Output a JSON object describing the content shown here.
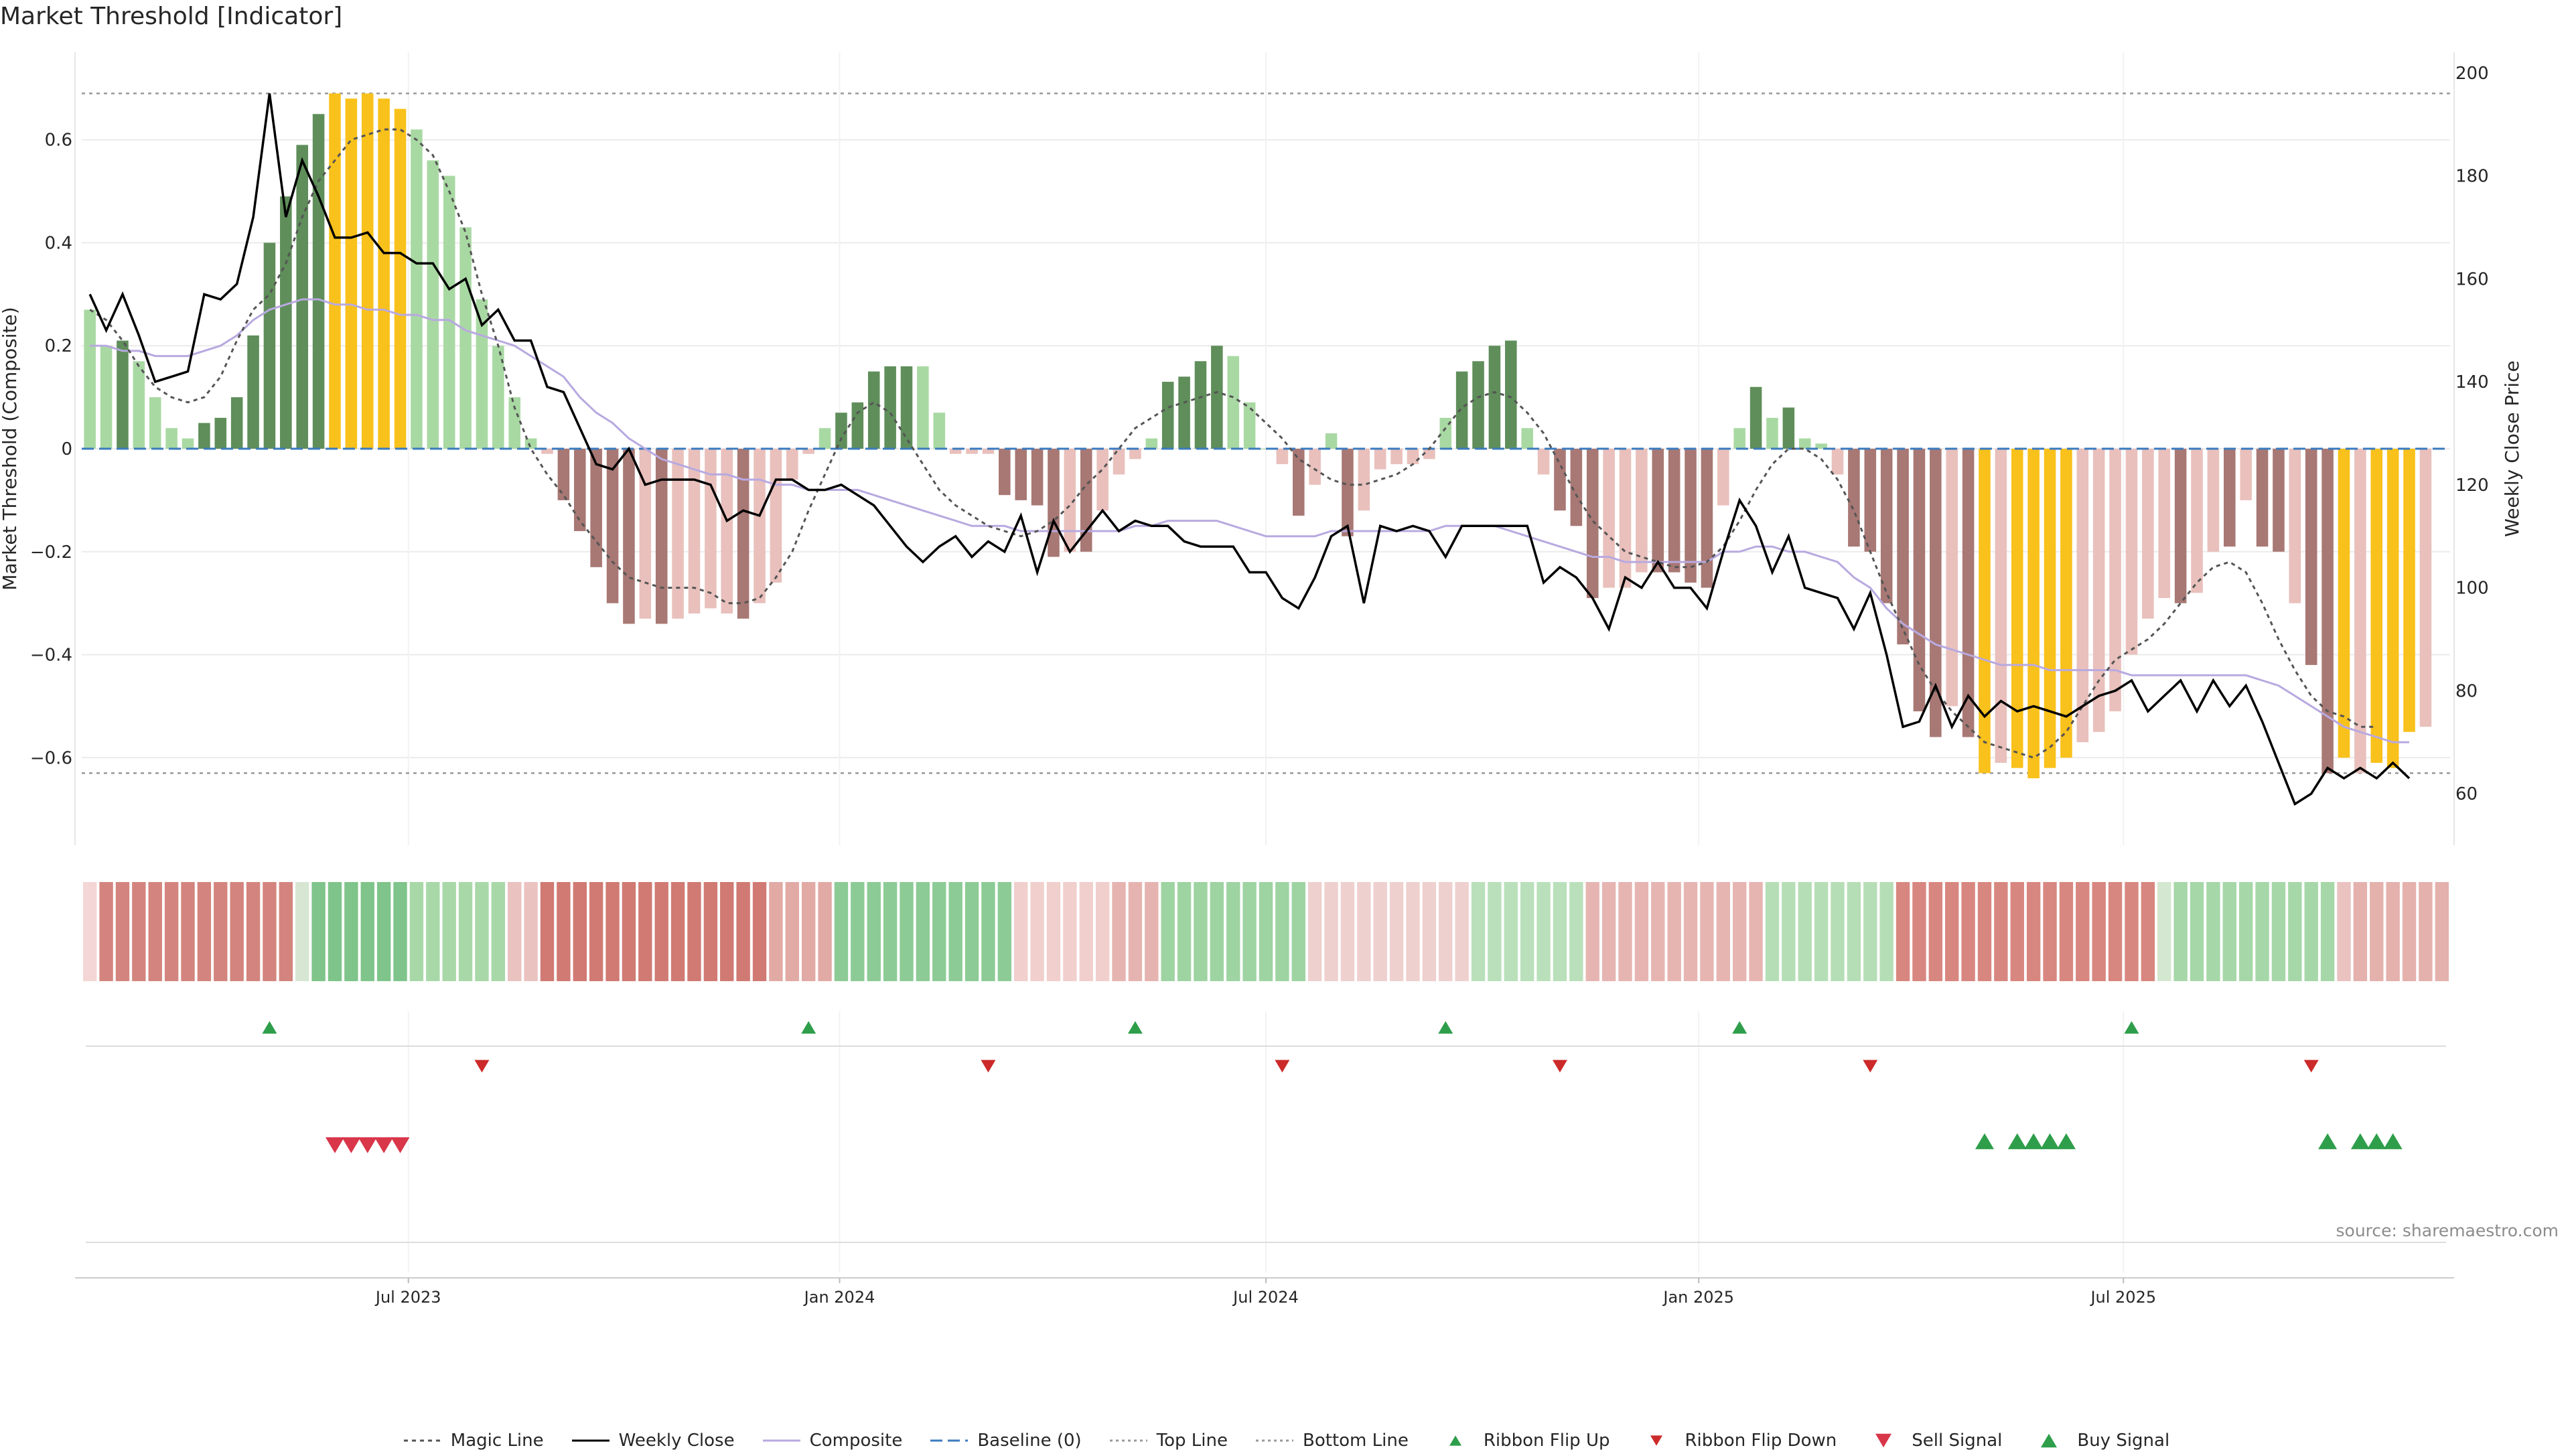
{
  "title": "Market Threshold [Indicator]",
  "source": "source: sharemaestro.com",
  "legend": [
    {
      "label": "Magic Line",
      "kind": "line",
      "color": "#555555",
      "dash": "6,6"
    },
    {
      "label": "Weekly Close",
      "kind": "line",
      "color": "#000000",
      "dash": ""
    },
    {
      "label": "Composite",
      "kind": "line",
      "color": "#b8a9e0",
      "dash": ""
    },
    {
      "label": "Baseline (0)",
      "kind": "line",
      "color": "#3b7bbf",
      "dash": "18,8"
    },
    {
      "label": "Top Line",
      "kind": "line",
      "color": "#999999",
      "dash": "4,5"
    },
    {
      "label": "Bottom Line",
      "kind": "line",
      "color": "#999999",
      "dash": "4,5"
    },
    {
      "label": "Ribbon Flip Up",
      "kind": "tri-up",
      "color": "#2e9e4a"
    },
    {
      "label": "Ribbon Flip Down",
      "kind": "tri-down",
      "color": "#cc2a2a"
    },
    {
      "label": "Sell Signal",
      "kind": "tri-down-big",
      "color": "#d9364a"
    },
    {
      "label": "Buy Signal",
      "kind": "tri-up-big",
      "color": "#2e9e4a"
    }
  ],
  "chart_data": {
    "type": "bar",
    "title": "Market Threshold [Indicator]",
    "ylabel": "Market Threshold (Composite)",
    "y2label": "Weekly Close Price",
    "ylim": [
      -0.77,
      0.77
    ],
    "y2lim": [
      50,
      204
    ],
    "yticks": [
      -0.6,
      -0.4,
      -0.2,
      0,
      0.2,
      0.4,
      0.6
    ],
    "y2ticks": [
      60,
      80,
      100,
      120,
      140,
      160,
      180,
      200
    ],
    "top_line": 0.69,
    "bottom_line": -0.63,
    "weeks": 145,
    "x_ticks": [
      {
        "label": "Jul 2023",
        "week": 20
      },
      {
        "label": "Jan 2024",
        "week": 46.4
      },
      {
        "label": "Jul 2024",
        "week": 72.5
      },
      {
        "label": "Jan 2025",
        "week": 99
      },
      {
        "label": "Jul 2025",
        "week": 125
      }
    ],
    "composite_bars": [
      0.27,
      0.2,
      0.21,
      0.17,
      0.1,
      0.04,
      0.02,
      0.05,
      0.06,
      0.1,
      0.22,
      0.4,
      0.49,
      0.59,
      0.65,
      0.69,
      0.68,
      0.69,
      0.68,
      0.66,
      0.62,
      0.56,
      0.53,
      0.43,
      0.29,
      0.2,
      0.1,
      0.02,
      -0.01,
      -0.1,
      -0.16,
      -0.23,
      -0.3,
      -0.34,
      -0.33,
      -0.34,
      -0.33,
      -0.32,
      -0.31,
      -0.32,
      -0.33,
      -0.3,
      -0.26,
      -0.06,
      -0.01,
      0.04,
      0.07,
      0.09,
      0.15,
      0.16,
      0.16,
      0.16,
      0.07,
      -0.01,
      -0.01,
      -0.01,
      -0.09,
      -0.1,
      -0.11,
      -0.21,
      -0.2,
      -0.2,
      -0.12,
      -0.05,
      -0.02,
      0.02,
      0.13,
      0.14,
      0.17,
      0.2,
      0.18,
      0.09,
      0.0,
      -0.03,
      -0.13,
      -0.07,
      0.03,
      -0.17,
      -0.12,
      -0.04,
      -0.03,
      -0.03,
      -0.02,
      0.06,
      0.15,
      0.17,
      0.2,
      0.21,
      0.04,
      -0.05,
      -0.12,
      -0.15,
      -0.29,
      -0.27,
      -0.27,
      -0.24,
      -0.24,
      -0.24,
      -0.26,
      -0.27,
      -0.11,
      0.04,
      0.12,
      0.06,
      0.08,
      0.02,
      0.01,
      -0.05,
      -0.19,
      -0.2,
      -0.3,
      -0.38,
      -0.51,
      -0.56,
      -0.5,
      -0.56,
      -0.63,
      -0.61,
      -0.62,
      -0.64,
      -0.62,
      -0.6,
      -0.57,
      -0.55,
      -0.51,
      -0.4,
      -0.33,
      -0.29,
      -0.3,
      -0.28,
      -0.2,
      -0.19,
      -0.1,
      -0.19,
      -0.2,
      -0.3,
      -0.42,
      -0.63,
      -0.6,
      -0.63,
      -0.61,
      -0.62,
      -0.55,
      -0.54
    ],
    "bar_colors": [
      "#a9d9a3",
      "#a9d9a3",
      "#5f8e5a",
      "#a9d9a3",
      "#a9d9a3",
      "#a9d9a3",
      "#a9d9a3",
      "#5f8e5a",
      "#5f8e5a",
      "#5f8e5a",
      "#5f8e5a",
      "#5f8e5a",
      "#5f8e5a",
      "#5f8e5a",
      "#5f8e5a",
      "#f9c11b",
      "#f9c11b",
      "#f9c11b",
      "#f9c11b",
      "#f9c11b",
      "#a9d9a3",
      "#a9d9a3",
      "#a9d9a3",
      "#a9d9a3",
      "#a9d9a3",
      "#a9d9a3",
      "#a9d9a3",
      "#a9d9a3",
      "#e9c0bc",
      "#a87874",
      "#a87874",
      "#a87874",
      "#a87874",
      "#a87874",
      "#e9c0bc",
      "#a87874",
      "#e9c0bc",
      "#e9c0bc",
      "#e9c0bc",
      "#e9c0bc",
      "#a87874",
      "#e9c0bc",
      "#e9c0bc",
      "#e9c0bc",
      "#e9c0bc",
      "#a9d9a3",
      "#5f8e5a",
      "#5f8e5a",
      "#5f8e5a",
      "#5f8e5a",
      "#5f8e5a",
      "#a9d9a3",
      "#a9d9a3",
      "#e9c0bc",
      "#e9c0bc",
      "#e9c0bc",
      "#a87874",
      "#a87874",
      "#a87874",
      "#a87874",
      "#e9c0bc",
      "#a87874",
      "#e9c0bc",
      "#e9c0bc",
      "#e9c0bc",
      "#a9d9a3",
      "#5f8e5a",
      "#5f8e5a",
      "#5f8e5a",
      "#5f8e5a",
      "#a9d9a3",
      "#a9d9a3",
      "#a9d9a3",
      "#e9c0bc",
      "#a87874",
      "#e9c0bc",
      "#a9d9a3",
      "#a87874",
      "#e9c0bc",
      "#e9c0bc",
      "#e9c0bc",
      "#e9c0bc",
      "#e9c0bc",
      "#a9d9a3",
      "#5f8e5a",
      "#5f8e5a",
      "#5f8e5a",
      "#5f8e5a",
      "#a9d9a3",
      "#e9c0bc",
      "#a87874",
      "#a87874",
      "#a87874",
      "#e9c0bc",
      "#e9c0bc",
      "#e9c0bc",
      "#a87874",
      "#a87874",
      "#a87874",
      "#a87874",
      "#e9c0bc",
      "#a9d9a3",
      "#5f8e5a",
      "#a9d9a3",
      "#5f8e5a",
      "#a9d9a3",
      "#a9d9a3",
      "#e9c0bc",
      "#a87874",
      "#a87874",
      "#a87874",
      "#a87874",
      "#a87874",
      "#a87874",
      "#e9c0bc",
      "#a87874",
      "#f9c11b",
      "#e9c0bc",
      "#f9c11b",
      "#f9c11b",
      "#f9c11b",
      "#f9c11b",
      "#e9c0bc",
      "#e9c0bc",
      "#e9c0bc",
      "#e9c0bc",
      "#e9c0bc",
      "#e9c0bc",
      "#a87874",
      "#e9c0bc",
      "#e9c0bc",
      "#a87874",
      "#e9c0bc",
      "#a87874",
      "#a87874",
      "#e9c0bc",
      "#a87874",
      "#a87874",
      "#f9c11b",
      "#e9c0bc",
      "#f9c11b",
      "#f9c11b",
      "#f9c11b",
      "#e9c0bc",
      "#e9c0bc"
    ],
    "weekly_close": [
      157,
      150,
      157,
      149,
      140,
      141,
      142,
      157,
      156,
      159,
      172,
      196,
      172,
      183,
      176,
      168,
      168,
      169,
      165,
      165,
      163,
      163,
      158,
      160,
      151,
      154,
      148,
      148,
      139,
      138,
      131,
      124,
      123,
      127,
      120,
      121,
      121,
      121,
      120,
      113,
      115,
      114,
      121,
      121,
      119,
      119,
      120,
      118,
      116,
      112,
      108,
      105,
      108,
      110,
      106,
      109,
      107,
      114,
      103,
      113,
      107,
      111,
      115,
      111,
      113,
      112,
      112,
      109,
      108,
      108,
      108,
      103,
      103,
      98,
      96,
      102,
      110,
      112,
      97,
      112,
      111,
      112,
      111,
      106,
      112,
      112,
      112,
      112,
      112,
      101,
      104,
      102,
      98,
      92,
      102,
      100,
      105,
      100,
      100,
      96,
      107,
      117,
      112,
      103,
      110,
      100,
      99,
      98,
      92,
      99,
      87,
      73,
      74,
      81,
      73,
      79,
      75,
      78,
      76,
      77,
      76,
      75,
      77,
      79,
      80,
      82,
      76,
      79,
      82,
      76,
      82,
      77,
      81,
      74,
      66,
      58,
      60,
      65,
      63,
      65,
      63,
      66,
      63
    ],
    "composite_line": [
      0.2,
      0.2,
      0.19,
      0.19,
      0.18,
      0.18,
      0.18,
      0.19,
      0.2,
      0.22,
      0.25,
      0.27,
      0.28,
      0.29,
      0.29,
      0.28,
      0.28,
      0.27,
      0.27,
      0.26,
      0.26,
      0.25,
      0.25,
      0.23,
      0.22,
      0.21,
      0.2,
      0.18,
      0.16,
      0.14,
      0.1,
      0.07,
      0.05,
      0.02,
      0.0,
      -0.02,
      -0.03,
      -0.04,
      -0.05,
      -0.05,
      -0.06,
      -0.06,
      -0.07,
      -0.07,
      -0.08,
      -0.08,
      -0.08,
      -0.08,
      -0.09,
      -0.1,
      -0.11,
      -0.12,
      -0.13,
      -0.14,
      -0.15,
      -0.15,
      -0.15,
      -0.16,
      -0.16,
      -0.16,
      -0.16,
      -0.16,
      -0.16,
      -0.16,
      -0.15,
      -0.15,
      -0.14,
      -0.14,
      -0.14,
      -0.14,
      -0.15,
      -0.16,
      -0.17,
      -0.17,
      -0.17,
      -0.17,
      -0.16,
      -0.16,
      -0.16,
      -0.16,
      -0.16,
      -0.16,
      -0.16,
      -0.15,
      -0.15,
      -0.15,
      -0.15,
      -0.16,
      -0.17,
      -0.18,
      -0.19,
      -0.2,
      -0.21,
      -0.21,
      -0.22,
      -0.22,
      -0.22,
      -0.22,
      -0.22,
      -0.22,
      -0.2,
      -0.2,
      -0.19,
      -0.19,
      -0.2,
      -0.2,
      -0.21,
      -0.22,
      -0.25,
      -0.27,
      -0.31,
      -0.34,
      -0.36,
      -0.38,
      -0.39,
      -0.4,
      -0.41,
      -0.42,
      -0.42,
      -0.42,
      -0.43,
      -0.43,
      -0.43,
      -0.43,
      -0.43,
      -0.44,
      -0.44,
      -0.44,
      -0.44,
      -0.44,
      -0.44,
      -0.44,
      -0.44,
      -0.45,
      -0.46,
      -0.48,
      -0.5,
      -0.52,
      -0.54,
      -0.55,
      -0.56,
      -0.57,
      -0.57
    ],
    "magic_line": [
      0.27,
      0.25,
      0.21,
      0.16,
      0.12,
      0.1,
      0.09,
      0.1,
      0.14,
      0.21,
      0.27,
      0.3,
      0.36,
      0.45,
      0.52,
      0.56,
      0.6,
      0.61,
      0.62,
      0.62,
      0.6,
      0.57,
      0.5,
      0.42,
      0.3,
      0.2,
      0.08,
      0.0,
      -0.05,
      -0.09,
      -0.14,
      -0.18,
      -0.22,
      -0.25,
      -0.26,
      -0.27,
      -0.27,
      -0.27,
      -0.28,
      -0.3,
      -0.3,
      -0.29,
      -0.25,
      -0.2,
      -0.12,
      -0.05,
      0.02,
      0.07,
      0.09,
      0.07,
      0.02,
      -0.03,
      -0.08,
      -0.11,
      -0.13,
      -0.15,
      -0.16,
      -0.17,
      -0.16,
      -0.14,
      -0.11,
      -0.07,
      -0.04,
      0.0,
      0.04,
      0.06,
      0.08,
      0.09,
      0.1,
      0.11,
      0.1,
      0.08,
      0.05,
      0.02,
      -0.02,
      -0.04,
      -0.06,
      -0.07,
      -0.07,
      -0.06,
      -0.05,
      -0.03,
      0.0,
      0.04,
      0.08,
      0.1,
      0.11,
      0.1,
      0.07,
      0.03,
      -0.03,
      -0.09,
      -0.14,
      -0.17,
      -0.2,
      -0.21,
      -0.22,
      -0.23,
      -0.23,
      -0.22,
      -0.19,
      -0.14,
      -0.08,
      -0.03,
      0.0,
      0.0,
      -0.02,
      -0.06,
      -0.12,
      -0.2,
      -0.28,
      -0.35,
      -0.42,
      -0.47,
      -0.51,
      -0.54,
      -0.57,
      -0.58,
      -0.59,
      -0.6,
      -0.58,
      -0.55,
      -0.5,
      -0.45,
      -0.41,
      -0.39,
      -0.37,
      -0.34,
      -0.3,
      -0.26,
      -0.23,
      -0.22,
      -0.24,
      -0.3,
      -0.37,
      -0.43,
      -0.48,
      -0.51,
      -0.52,
      -0.54,
      -0.54
    ],
    "ribbon": [
      [
        "#f3d6d5",
        1
      ],
      [
        "#d4847e",
        12
      ],
      [
        "#d6e6d2",
        1
      ],
      [
        "#7fc48a",
        6
      ],
      [
        "#a8d8a8",
        6
      ],
      [
        "#eac2c0",
        2
      ],
      [
        "#d07a73",
        14
      ],
      [
        "#e2aaa5",
        4
      ],
      [
        "#8ccb95",
        11
      ],
      [
        "#f0cfcd",
        6
      ],
      [
        "#e6b4b0",
        3
      ],
      [
        "#9ed3a2",
        9
      ],
      [
        "#eed0ce",
        10
      ],
      [
        "#b9e0ba",
        7
      ],
      [
        "#e6b5b2",
        11
      ],
      [
        "#b6deb6",
        8
      ],
      [
        "#d88780",
        16
      ],
      [
        "#d4e7d0",
        1
      ],
      [
        "#a6d7a8",
        10
      ],
      [
        "#eac2bf",
        1
      ],
      [
        "#e4b1ad",
        7
      ]
    ],
    "ribbon_flip_up_weeks": [
      11,
      44,
      64,
      83,
      101,
      125
    ],
    "ribbon_flip_down_weeks": [
      24,
      55,
      73,
      90,
      109,
      136
    ],
    "sell_signal_weeks": [
      15,
      16,
      17,
      18,
      19
    ],
    "buy_signal_weeks": [
      116,
      118,
      119,
      120,
      121,
      137,
      139,
      140,
      141
    ]
  }
}
